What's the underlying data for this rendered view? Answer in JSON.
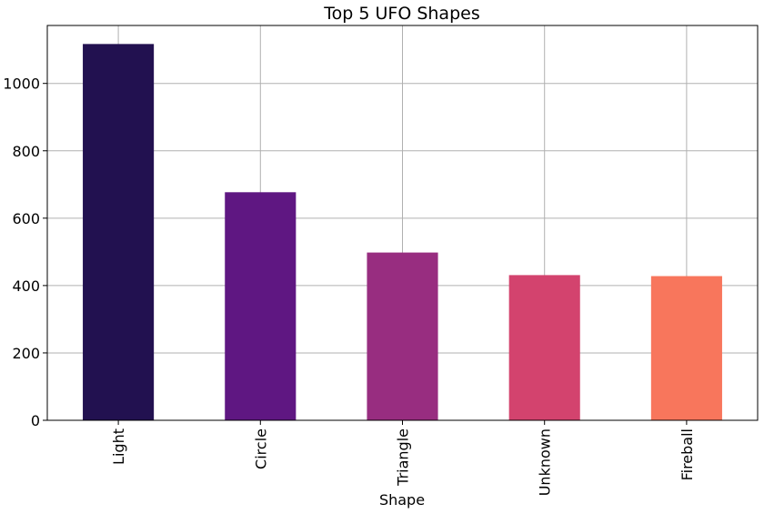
{
  "chart_data": {
    "type": "bar",
    "title": "Top 5 UFO Shapes",
    "xlabel": "Shape",
    "ylabel": "",
    "categories": [
      "Light",
      "Circle",
      "Triangle",
      "Unknown",
      "Fireball"
    ],
    "values": [
      1117,
      677,
      498,
      431,
      428
    ],
    "colors": [
      "#221150",
      "#5f1782",
      "#982d80",
      "#d3436e",
      "#f8765c"
    ],
    "ylim": [
      0,
      1172
    ],
    "yticks": [
      0,
      200,
      400,
      600,
      800,
      1000
    ],
    "grid": true,
    "legend": false
  }
}
